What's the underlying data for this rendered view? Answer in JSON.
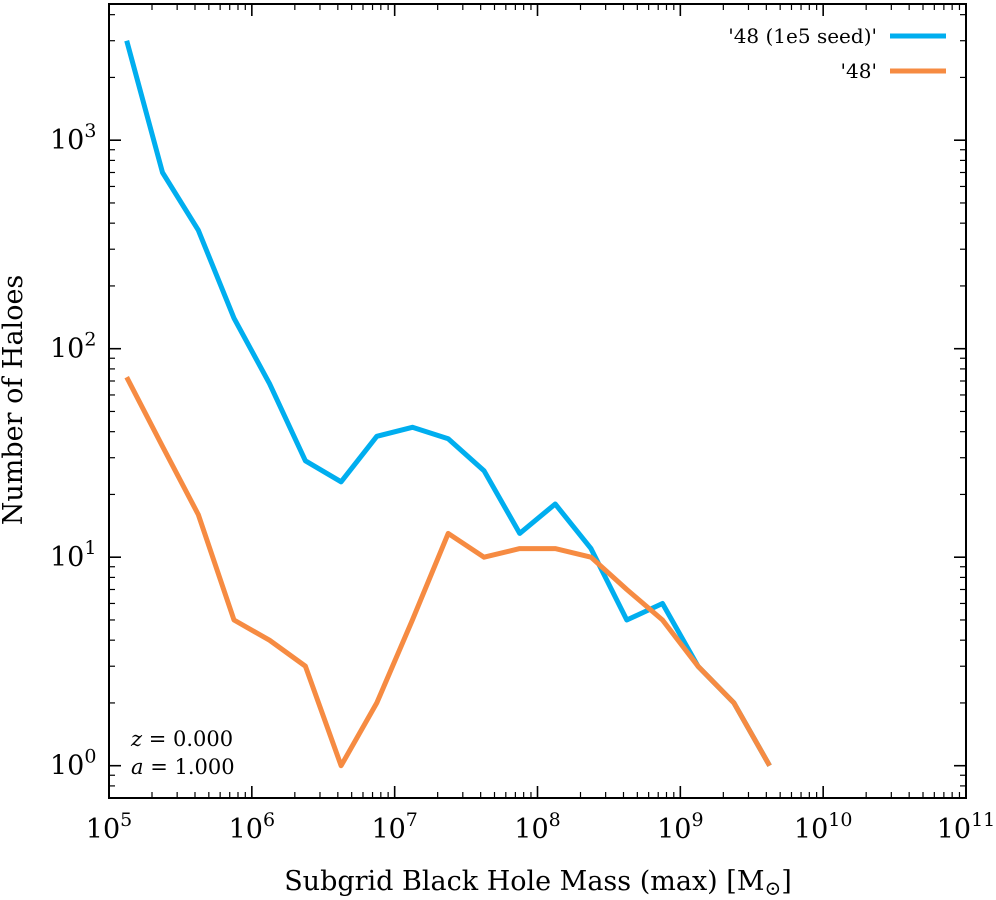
{
  "chart_data": {
    "type": "line",
    "title": "",
    "xlabel": "Subgrid Black Hole Mass (max) [M",
    "xlabel_sub": "⊙",
    "xlabel_close": "]",
    "ylabel": "Number of Haloes",
    "xscale": "log",
    "yscale": "log",
    "xlim": [
      100000,
      100000000000
    ],
    "ylim": [
      0.7,
      4500
    ],
    "x_ticks": [
      {
        "value": 100000,
        "base": "10",
        "exp": "5"
      },
      {
        "value": 1000000,
        "base": "10",
        "exp": "6"
      },
      {
        "value": 10000000,
        "base": "10",
        "exp": "7"
      },
      {
        "value": 100000000,
        "base": "10",
        "exp": "8"
      },
      {
        "value": 1000000000,
        "base": "10",
        "exp": "9"
      },
      {
        "value": 10000000000,
        "base": "10",
        "exp": "10"
      },
      {
        "value": 100000000000,
        "base": "10",
        "exp": "11"
      }
    ],
    "y_ticks": [
      {
        "value": 1,
        "base": "10",
        "exp": "0"
      },
      {
        "value": 10,
        "base": "10",
        "exp": "1"
      },
      {
        "value": 100,
        "base": "10",
        "exp": "2"
      },
      {
        "value": 1000,
        "base": "10",
        "exp": "3"
      }
    ],
    "legend_position": "top-right",
    "series": [
      {
        "name": "'48 (1e5 seed)'",
        "color": "#00aeef",
        "x": [
          133000,
          237000,
          422000,
          750000,
          1330000,
          2370000,
          4220000,
          7500000,
          13300000,
          23700000,
          42200000,
          75000000,
          133000000,
          237000000,
          422000000,
          750000000,
          1330000000,
          2370000000,
          4220000000
        ],
        "y": [
          3000,
          700,
          370,
          140,
          68,
          29,
          23,
          38,
          42,
          37,
          26,
          13,
          18,
          11,
          5,
          6,
          3,
          2,
          1
        ]
      },
      {
        "name": "'48'",
        "color": "#f68b42",
        "x": [
          133000,
          237000,
          422000,
          750000,
          1330000,
          2370000,
          4220000,
          7500000,
          13300000,
          23700000,
          42200000,
          75000000,
          133000000,
          237000000,
          422000000,
          750000000,
          1330000000,
          2370000000,
          4220000000
        ],
        "y": [
          73,
          34,
          16,
          5,
          4,
          3,
          1,
          2,
          5,
          13,
          10,
          11,
          11,
          10,
          7,
          5,
          3,
          2,
          1
        ]
      }
    ],
    "annotations": [
      {
        "var": "z",
        "text": " = 0.000"
      },
      {
        "var": "a",
        "text": " = 1.000"
      }
    ]
  }
}
